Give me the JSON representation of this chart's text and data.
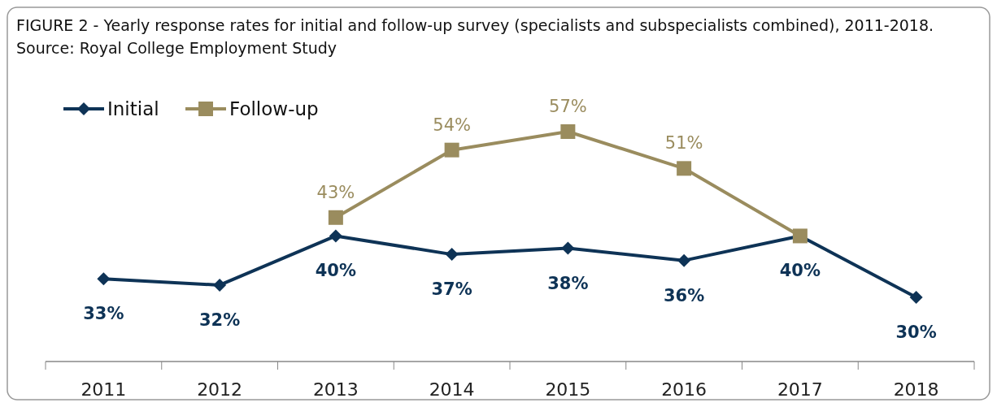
{
  "chart_data": {
    "type": "line",
    "title": "FIGURE 2 - Yearly response rates for initial and follow-up survey (specialists and subspecialists combined), 2011-2018. Source: Royal College Employment Study",
    "categories": [
      "2011",
      "2012",
      "2013",
      "2014",
      "2015",
      "2016",
      "2017",
      "2018"
    ],
    "legend": "top left",
    "series": [
      {
        "name": "Initial",
        "color": "#0e3356",
        "marker": "diamond",
        "values": [
          33,
          32,
          40,
          37,
          38,
          36,
          40,
          30
        ],
        "value_labels": [
          "33%",
          "32%",
          "40%",
          "37%",
          "38%",
          "36%",
          "40%",
          "30%"
        ]
      },
      {
        "name": "Follow-up",
        "color": "#9a8c5e",
        "marker": "square",
        "values": [
          null,
          null,
          43,
          54,
          57,
          51,
          40,
          null
        ],
        "value_labels": [
          null,
          null,
          "43%",
          "54%",
          "57%",
          "51%",
          null,
          null
        ]
      }
    ]
  }
}
